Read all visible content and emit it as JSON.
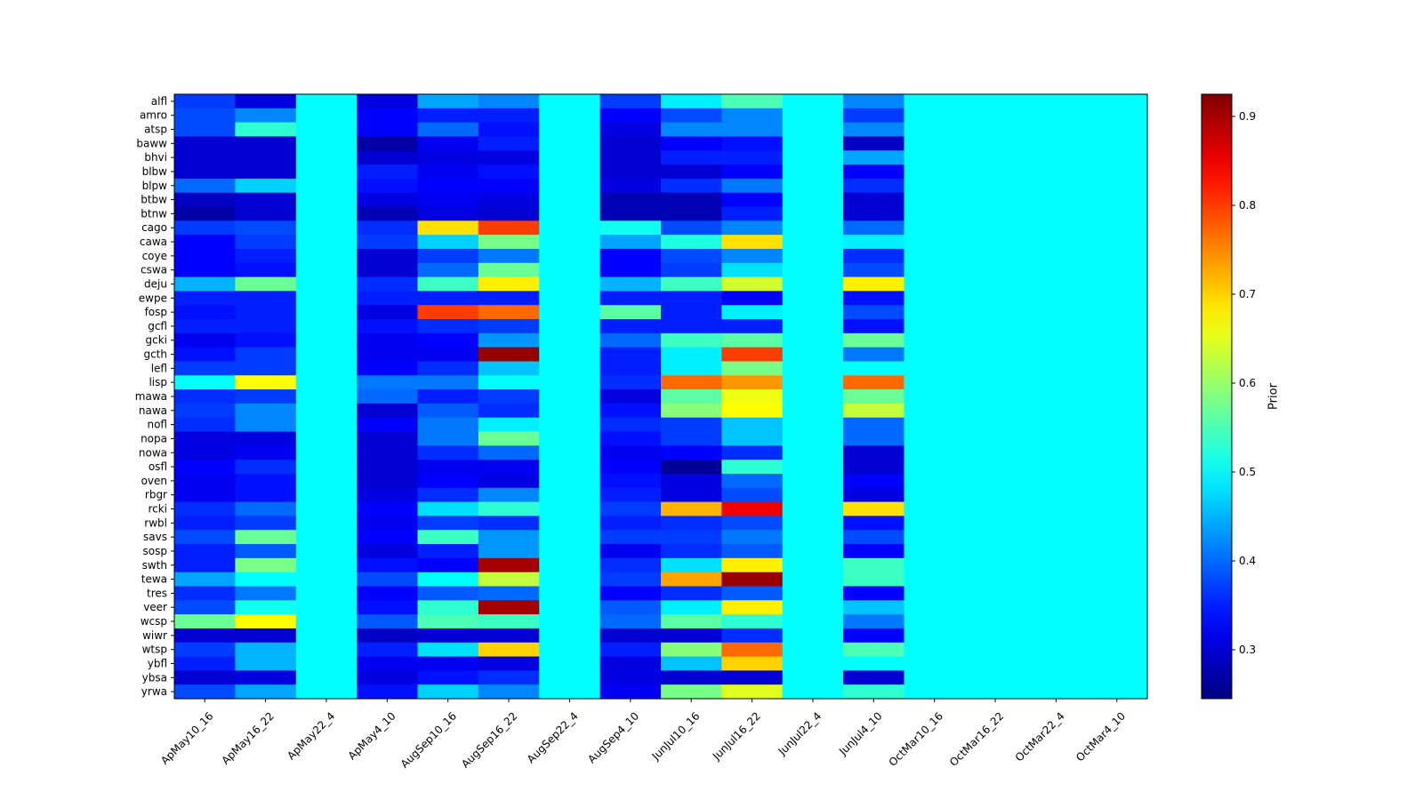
{
  "chart_data": {
    "type": "heatmap",
    "title": "",
    "xlabel": "",
    "ylabel": "",
    "colorbar_label": "Prior",
    "colormap": "jet",
    "vmin": 0.245,
    "vmax": 0.925,
    "colorbar_ticks": [
      "0.3",
      "0.4",
      "0.5",
      "0.6",
      "0.7",
      "0.8",
      "0.9"
    ],
    "x_categories": [
      "ApMay10_16",
      "ApMay16_22",
      "ApMay22_4",
      "ApMay4_10",
      "AugSep10_16",
      "AugSep16_22",
      "AugSep22_4",
      "AugSep4_10",
      "JunJul10_16",
      "JunJul16_22",
      "JunJul22_4",
      "JunJul4_10",
      "OctMar10_16",
      "OctMar16_22",
      "OctMar22_4",
      "OctMar4_10"
    ],
    "y_categories": [
      "alfl",
      "amro",
      "atsp",
      "baww",
      "bhvi",
      "blbw",
      "blpw",
      "btbw",
      "btnw",
      "cago",
      "cawa",
      "coye",
      "cswa",
      "deju",
      "ewpe",
      "fosp",
      "gcfl",
      "gcki",
      "gcth",
      "lefl",
      "lisp",
      "mawa",
      "nawa",
      "nofl",
      "nopa",
      "nowa",
      "osfl",
      "oven",
      "rbgr",
      "rcki",
      "rwbl",
      "savs",
      "sosp",
      "swth",
      "tewa",
      "tres",
      "veer",
      "wcsp",
      "wiwr",
      "wtsp",
      "ybfl",
      "ybsa",
      "yrwa"
    ],
    "values": [
      [
        0.37,
        0.31,
        0.5,
        0.31,
        0.44,
        0.42,
        0.5,
        0.37,
        0.49,
        0.55,
        0.5,
        0.42,
        0.5,
        0.5,
        0.5,
        0.5
      ],
      [
        0.38,
        0.42,
        0.5,
        0.33,
        0.35,
        0.35,
        0.5,
        0.33,
        0.38,
        0.42,
        0.5,
        0.37,
        0.5,
        0.5,
        0.5,
        0.5
      ],
      [
        0.38,
        0.53,
        0.5,
        0.33,
        0.4,
        0.34,
        0.5,
        0.31,
        0.42,
        0.42,
        0.5,
        0.42,
        0.5,
        0.5,
        0.5,
        0.5
      ],
      [
        0.3,
        0.3,
        0.5,
        0.27,
        0.32,
        0.35,
        0.5,
        0.3,
        0.33,
        0.34,
        0.5,
        0.29,
        0.5,
        0.5,
        0.5,
        0.5
      ],
      [
        0.3,
        0.3,
        0.5,
        0.3,
        0.31,
        0.31,
        0.5,
        0.3,
        0.35,
        0.35,
        0.5,
        0.44,
        0.5,
        0.5,
        0.5,
        0.5
      ],
      [
        0.3,
        0.3,
        0.5,
        0.35,
        0.32,
        0.34,
        0.5,
        0.3,
        0.3,
        0.33,
        0.5,
        0.33,
        0.5,
        0.5,
        0.5,
        0.5
      ],
      [
        0.4,
        0.47,
        0.5,
        0.34,
        0.33,
        0.33,
        0.5,
        0.31,
        0.36,
        0.41,
        0.5,
        0.36,
        0.5,
        0.5,
        0.5,
        0.5
      ],
      [
        0.29,
        0.3,
        0.5,
        0.31,
        0.32,
        0.31,
        0.5,
        0.28,
        0.28,
        0.33,
        0.5,
        0.3,
        0.5,
        0.5,
        0.5,
        0.5
      ],
      [
        0.27,
        0.3,
        0.5,
        0.28,
        0.31,
        0.3,
        0.5,
        0.28,
        0.28,
        0.35,
        0.5,
        0.3,
        0.5,
        0.5,
        0.5,
        0.5
      ],
      [
        0.37,
        0.38,
        0.5,
        0.36,
        0.69,
        0.8,
        0.5,
        0.51,
        0.38,
        0.42,
        0.5,
        0.4,
        0.5,
        0.5,
        0.5,
        0.5
      ],
      [
        0.33,
        0.37,
        0.5,
        0.37,
        0.47,
        0.58,
        0.5,
        0.44,
        0.52,
        0.69,
        0.5,
        0.49,
        0.5,
        0.5,
        0.5,
        0.5
      ],
      [
        0.33,
        0.35,
        0.5,
        0.3,
        0.37,
        0.41,
        0.5,
        0.33,
        0.38,
        0.42,
        0.5,
        0.36,
        0.5,
        0.5,
        0.5,
        0.5
      ],
      [
        0.33,
        0.34,
        0.5,
        0.3,
        0.4,
        0.57,
        0.5,
        0.33,
        0.37,
        0.48,
        0.5,
        0.38,
        0.5,
        0.5,
        0.5,
        0.5
      ],
      [
        0.45,
        0.57,
        0.5,
        0.36,
        0.54,
        0.68,
        0.5,
        0.45,
        0.54,
        0.64,
        0.5,
        0.68,
        0.5,
        0.5,
        0.5,
        0.5
      ],
      [
        0.35,
        0.35,
        0.5,
        0.35,
        0.35,
        0.35,
        0.5,
        0.35,
        0.35,
        0.33,
        0.5,
        0.34,
        0.5,
        0.5,
        0.5,
        0.5
      ],
      [
        0.34,
        0.35,
        0.5,
        0.31,
        0.8,
        0.77,
        0.5,
        0.56,
        0.35,
        0.49,
        0.5,
        0.38,
        0.5,
        0.5,
        0.5,
        0.5
      ],
      [
        0.35,
        0.35,
        0.5,
        0.34,
        0.36,
        0.37,
        0.5,
        0.35,
        0.35,
        0.35,
        0.5,
        0.34,
        0.5,
        0.5,
        0.5,
        0.5
      ],
      [
        0.32,
        0.34,
        0.5,
        0.32,
        0.33,
        0.43,
        0.5,
        0.4,
        0.54,
        0.56,
        0.5,
        0.57,
        0.5,
        0.5,
        0.5,
        0.5
      ],
      [
        0.34,
        0.37,
        0.5,
        0.32,
        0.32,
        0.91,
        0.5,
        0.35,
        0.49,
        0.8,
        0.5,
        0.41,
        0.5,
        0.5,
        0.5,
        0.5
      ],
      [
        0.37,
        0.37,
        0.5,
        0.33,
        0.36,
        0.46,
        0.5,
        0.35,
        0.49,
        0.58,
        0.5,
        0.5,
        0.5,
        0.5,
        0.5,
        0.5
      ],
      [
        0.5,
        0.67,
        0.5,
        0.41,
        0.41,
        0.5,
        0.5,
        0.36,
        0.77,
        0.74,
        0.5,
        0.77,
        0.5,
        0.5,
        0.5,
        0.5
      ],
      [
        0.36,
        0.37,
        0.5,
        0.4,
        0.35,
        0.37,
        0.5,
        0.31,
        0.56,
        0.66,
        0.5,
        0.57,
        0.5,
        0.5,
        0.5,
        0.5
      ],
      [
        0.37,
        0.42,
        0.5,
        0.3,
        0.39,
        0.36,
        0.5,
        0.34,
        0.59,
        0.67,
        0.5,
        0.63,
        0.5,
        0.5,
        0.5,
        0.5
      ],
      [
        0.36,
        0.42,
        0.5,
        0.33,
        0.41,
        0.49,
        0.5,
        0.36,
        0.37,
        0.46,
        0.5,
        0.4,
        0.5,
        0.5,
        0.5,
        0.5
      ],
      [
        0.31,
        0.31,
        0.5,
        0.3,
        0.41,
        0.57,
        0.5,
        0.34,
        0.37,
        0.46,
        0.5,
        0.4,
        0.5,
        0.5,
        0.5,
        0.5
      ],
      [
        0.31,
        0.32,
        0.5,
        0.3,
        0.36,
        0.4,
        0.5,
        0.32,
        0.33,
        0.36,
        0.5,
        0.3,
        0.5,
        0.5,
        0.5,
        0.5
      ],
      [
        0.33,
        0.36,
        0.5,
        0.3,
        0.32,
        0.32,
        0.5,
        0.33,
        0.26,
        0.53,
        0.5,
        0.3,
        0.5,
        0.5,
        0.5,
        0.5
      ],
      [
        0.32,
        0.34,
        0.5,
        0.3,
        0.33,
        0.31,
        0.5,
        0.34,
        0.31,
        0.4,
        0.5,
        0.33,
        0.5,
        0.5,
        0.5,
        0.5
      ],
      [
        0.32,
        0.34,
        0.5,
        0.31,
        0.36,
        0.42,
        0.5,
        0.35,
        0.31,
        0.38,
        0.5,
        0.31,
        0.5,
        0.5,
        0.5,
        0.5
      ],
      [
        0.36,
        0.4,
        0.5,
        0.33,
        0.48,
        0.53,
        0.5,
        0.37,
        0.72,
        0.85,
        0.5,
        0.69,
        0.5,
        0.5,
        0.5,
        0.5
      ],
      [
        0.35,
        0.37,
        0.5,
        0.32,
        0.37,
        0.36,
        0.5,
        0.35,
        0.36,
        0.38,
        0.5,
        0.34,
        0.5,
        0.5,
        0.5,
        0.5
      ],
      [
        0.38,
        0.57,
        0.5,
        0.33,
        0.54,
        0.43,
        0.5,
        0.37,
        0.37,
        0.41,
        0.5,
        0.38,
        0.5,
        0.5,
        0.5,
        0.5
      ],
      [
        0.35,
        0.39,
        0.5,
        0.31,
        0.35,
        0.43,
        0.5,
        0.32,
        0.36,
        0.39,
        0.5,
        0.33,
        0.5,
        0.5,
        0.5,
        0.5
      ],
      [
        0.35,
        0.58,
        0.5,
        0.34,
        0.33,
        0.9,
        0.5,
        0.36,
        0.48,
        0.68,
        0.5,
        0.54,
        0.5,
        0.5,
        0.5,
        0.5
      ],
      [
        0.44,
        0.5,
        0.5,
        0.38,
        0.5,
        0.63,
        0.5,
        0.37,
        0.73,
        0.91,
        0.5,
        0.54,
        0.5,
        0.5,
        0.5,
        0.5
      ],
      [
        0.36,
        0.41,
        0.5,
        0.33,
        0.39,
        0.4,
        0.5,
        0.33,
        0.36,
        0.39,
        0.5,
        0.33,
        0.5,
        0.5,
        0.5,
        0.5
      ],
      [
        0.38,
        0.51,
        0.5,
        0.34,
        0.53,
        0.9,
        0.5,
        0.39,
        0.49,
        0.68,
        0.5,
        0.46,
        0.5,
        0.5,
        0.5,
        0.5
      ],
      [
        0.57,
        0.67,
        0.5,
        0.39,
        0.55,
        0.54,
        0.5,
        0.4,
        0.56,
        0.53,
        0.5,
        0.41,
        0.5,
        0.5,
        0.5,
        0.5
      ],
      [
        0.3,
        0.3,
        0.5,
        0.29,
        0.3,
        0.3,
        0.5,
        0.3,
        0.3,
        0.36,
        0.5,
        0.33,
        0.5,
        0.5,
        0.5,
        0.5
      ],
      [
        0.37,
        0.45,
        0.5,
        0.35,
        0.48,
        0.7,
        0.5,
        0.35,
        0.59,
        0.77,
        0.5,
        0.55,
        0.5,
        0.5,
        0.5,
        0.5
      ],
      [
        0.35,
        0.45,
        0.5,
        0.32,
        0.32,
        0.31,
        0.5,
        0.31,
        0.46,
        0.7,
        0.5,
        0.5,
        0.5,
        0.5,
        0.5,
        0.5
      ],
      [
        0.3,
        0.31,
        0.5,
        0.31,
        0.34,
        0.36,
        0.5,
        0.31,
        0.3,
        0.3,
        0.5,
        0.3,
        0.5,
        0.5,
        0.5,
        0.5
      ],
      [
        0.38,
        0.44,
        0.5,
        0.34,
        0.47,
        0.42,
        0.5,
        0.32,
        0.58,
        0.65,
        0.5,
        0.53,
        0.5,
        0.5,
        0.5,
        0.5
      ]
    ]
  }
}
